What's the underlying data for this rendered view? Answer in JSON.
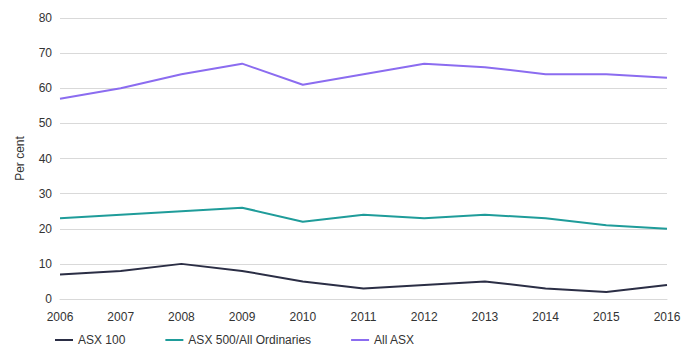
{
  "chart_data": {
    "type": "line",
    "y_label": "Per cent",
    "categories": [
      "2006",
      "2007",
      "2008",
      "2009",
      "2010",
      "2011",
      "2012",
      "2013",
      "2014",
      "2015",
      "2016"
    ],
    "series": [
      {
        "name": "ASX 100",
        "color": "#2b2e45",
        "values": [
          7,
          8,
          10,
          8,
          5,
          3,
          4,
          5,
          3,
          2,
          4
        ]
      },
      {
        "name": "ASX 500/All Ordinaries",
        "color": "#1f9c9a",
        "values": [
          23,
          24,
          25,
          26,
          22,
          24,
          23,
          24,
          23,
          21,
          20
        ]
      },
      {
        "name": "All ASX",
        "color": "#8b6cf0",
        "values": [
          57,
          60,
          64,
          67,
          61,
          64,
          67,
          66,
          64,
          64,
          63
        ]
      }
    ],
    "ylim": [
      0,
      80
    ],
    "yticks": [
      0,
      10,
      20,
      30,
      40,
      50,
      60,
      70,
      80
    ],
    "grid": true,
    "legend": "bottom-left"
  }
}
